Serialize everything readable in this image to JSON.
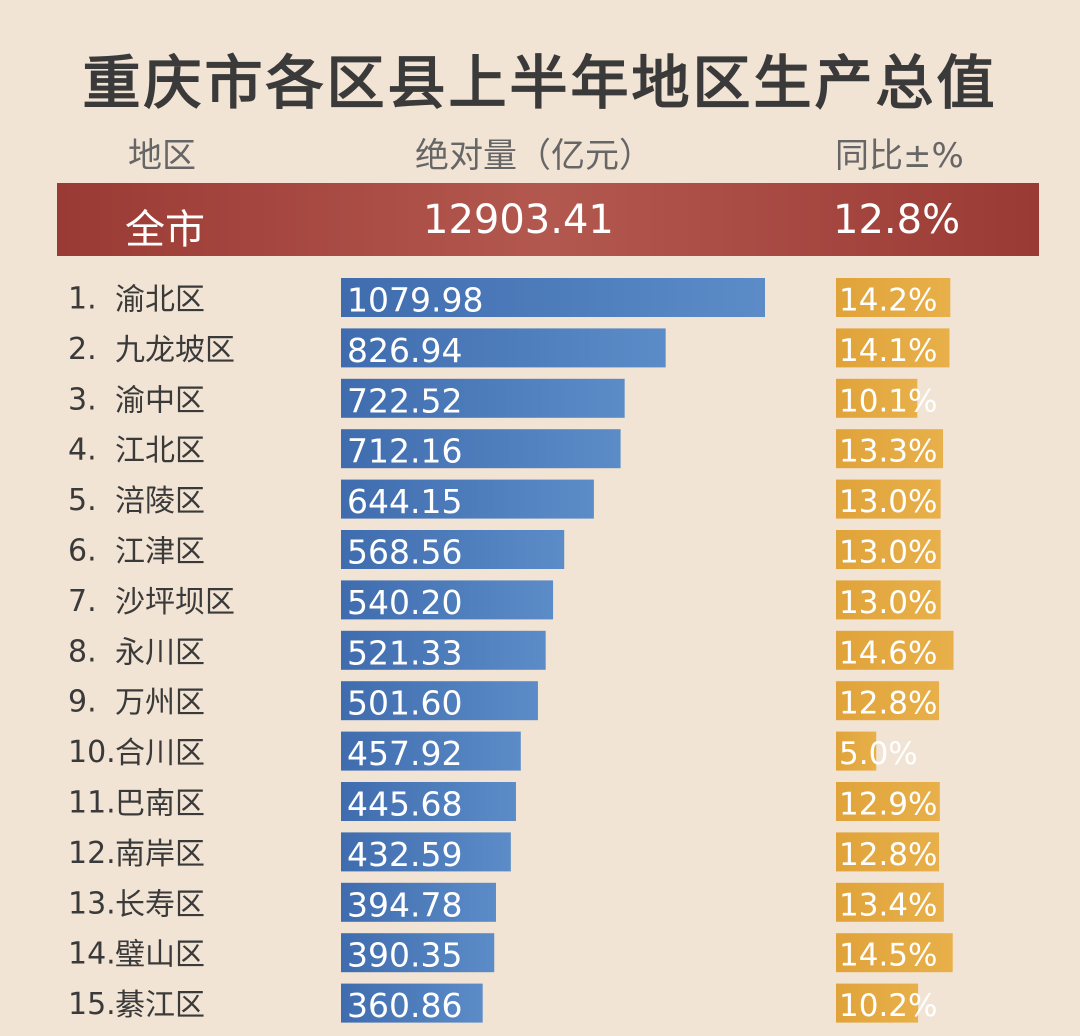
{
  "title": "重庆市各区县上半年地区生产总值",
  "headers": {
    "region": "地区",
    "absolute": "绝对量（亿元）",
    "yoy": "同比±%"
  },
  "total": {
    "label": "全市",
    "value": "12903.41",
    "yoy": "12.8%"
  },
  "colors": {
    "title": "#3a3a3a",
    "band": "#a8463f",
    "bar": "#4a78b8",
    "pct": "#e3a63c",
    "bg": "#f2e4d4"
  },
  "chart_data": {
    "type": "bar",
    "orientation": "horizontal",
    "title": "重庆市各区县上半年地区生产总值",
    "xlabel": "绝对量（亿元）",
    "categories": [
      "渝北区",
      "九龙坡区",
      "渝中区",
      "江北区",
      "涪陵区",
      "江津区",
      "沙坪坝区",
      "永川区",
      "万州区",
      "合川区",
      "巴南区",
      "南岸区",
      "长寿区",
      "璧山区",
      "綦江区"
    ],
    "ranks": [
      "1.",
      "2.",
      "3.",
      "4.",
      "5.",
      "6.",
      "7.",
      "8.",
      "9.",
      "10.",
      "11.",
      "12.",
      "13.",
      "14.",
      "15."
    ],
    "series": [
      {
        "name": "绝对量（亿元）",
        "values": [
          1079.98,
          826.94,
          722.52,
          712.16,
          644.15,
          568.56,
          540.2,
          521.33,
          501.6,
          457.92,
          445.68,
          432.59,
          394.78,
          390.35,
          360.86
        ],
        "labels": [
          "1079.98",
          "826.94",
          "722.52",
          "712.16",
          "644.15",
          "568.56",
          "540.20",
          "521.33",
          "501.60",
          "457.92",
          "445.68",
          "432.59",
          "394.78",
          "390.35",
          "360.86"
        ]
      },
      {
        "name": "同比±%",
        "values": [
          14.2,
          14.1,
          10.1,
          13.3,
          13.0,
          13.0,
          13.0,
          14.6,
          12.8,
          5.0,
          12.9,
          12.8,
          13.4,
          14.5,
          10.2
        ],
        "labels": [
          "14.2%",
          "14.1%",
          "10.1%",
          "13.3%",
          "13.0%",
          "13.0%",
          "13.0%",
          "14.6%",
          "12.8%",
          "5.0%",
          "12.9%",
          "12.8%",
          "13.4%",
          "14.5%",
          "10.2%"
        ]
      }
    ],
    "total": {
      "label": "全市",
      "value": 12903.41,
      "yoy": 12.8
    }
  }
}
